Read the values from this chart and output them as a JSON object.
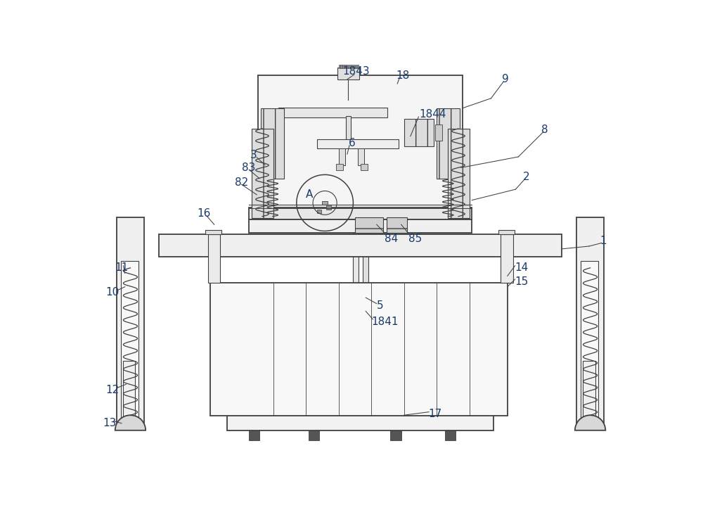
{
  "bg_color": "#ffffff",
  "line_color": "#404040",
  "label_color": "#1a3a6a",
  "fig_width": 10.0,
  "fig_height": 7.35,
  "lw_main": 1.3,
  "lw_thin": 0.8,
  "lw_label": 0.75
}
